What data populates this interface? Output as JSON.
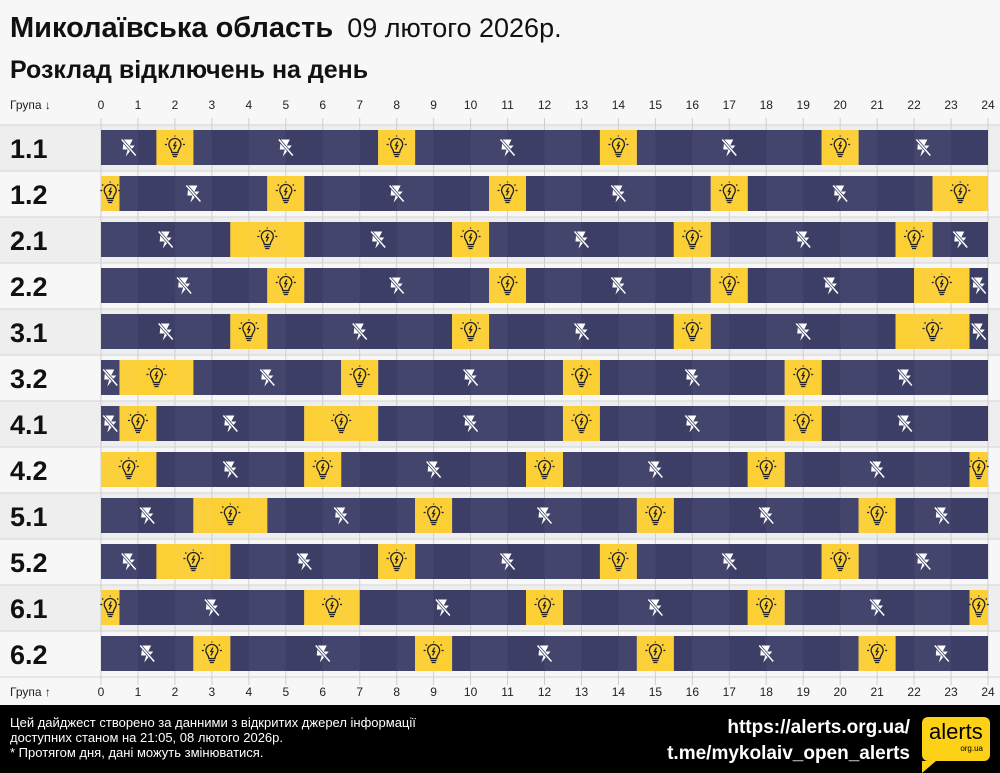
{
  "header": {
    "region": "Миколаївська область",
    "date": "09 лютого 2026р.",
    "subtitle": "Розклад відключень на день"
  },
  "chart_data": {
    "type": "table",
    "axis_top_label": "Група ↓",
    "axis_bottom_label": "Група ↑",
    "x_ticks": [
      "0",
      "1",
      "2",
      "3",
      "4",
      "5",
      "6",
      "7",
      "8",
      "9",
      "10",
      "11",
      "12",
      "13",
      "14",
      "15",
      "16",
      "17",
      "18",
      "19",
      "20",
      "21",
      "22",
      "23",
      "24"
    ],
    "xlim": [
      0,
      24
    ],
    "legend": {
      "off": "lightning-off-icon",
      "on": "lightbulb-icon"
    },
    "colors": {
      "off": "#3d3e66",
      "on": "#fccf34"
    },
    "groups": [
      {
        "name": "1.1",
        "segments": [
          [
            0,
            1.5,
            "off"
          ],
          [
            1.5,
            2.5,
            "on"
          ],
          [
            2.5,
            7.5,
            "off"
          ],
          [
            7.5,
            8.5,
            "on"
          ],
          [
            8.5,
            13.5,
            "off"
          ],
          [
            13.5,
            14.5,
            "on"
          ],
          [
            14.5,
            19.5,
            "off"
          ],
          [
            19.5,
            20.5,
            "on"
          ],
          [
            20.5,
            24,
            "off"
          ]
        ]
      },
      {
        "name": "1.2",
        "segments": [
          [
            0,
            0.5,
            "on"
          ],
          [
            0.5,
            4.5,
            "off"
          ],
          [
            4.5,
            5.5,
            "on"
          ],
          [
            5.5,
            10.5,
            "off"
          ],
          [
            10.5,
            11.5,
            "on"
          ],
          [
            11.5,
            16.5,
            "off"
          ],
          [
            16.5,
            17.5,
            "on"
          ],
          [
            17.5,
            22.5,
            "off"
          ],
          [
            22.5,
            24,
            "on"
          ]
        ]
      },
      {
        "name": "2.1",
        "segments": [
          [
            0,
            3.5,
            "off"
          ],
          [
            3.5,
            5.5,
            "on"
          ],
          [
            5.5,
            9.5,
            "off"
          ],
          [
            9.5,
            10.5,
            "on"
          ],
          [
            10.5,
            15.5,
            "off"
          ],
          [
            15.5,
            16.5,
            "on"
          ],
          [
            16.5,
            21.5,
            "off"
          ],
          [
            21.5,
            22.5,
            "on"
          ],
          [
            22.5,
            24,
            "off"
          ]
        ]
      },
      {
        "name": "2.2",
        "segments": [
          [
            0,
            4.5,
            "off"
          ],
          [
            4.5,
            5.5,
            "on"
          ],
          [
            5.5,
            10.5,
            "off"
          ],
          [
            10.5,
            11.5,
            "on"
          ],
          [
            11.5,
            16.5,
            "off"
          ],
          [
            16.5,
            17.5,
            "on"
          ],
          [
            17.5,
            22,
            "off"
          ],
          [
            22,
            23.5,
            "on"
          ],
          [
            23.5,
            24,
            "off"
          ]
        ]
      },
      {
        "name": "3.1",
        "segments": [
          [
            0,
            3.5,
            "off"
          ],
          [
            3.5,
            4.5,
            "on"
          ],
          [
            4.5,
            9.5,
            "off"
          ],
          [
            9.5,
            10.5,
            "on"
          ],
          [
            10.5,
            15.5,
            "off"
          ],
          [
            15.5,
            16.5,
            "on"
          ],
          [
            16.5,
            21.5,
            "off"
          ],
          [
            21.5,
            23.5,
            "on"
          ],
          [
            23.5,
            24,
            "off"
          ]
        ]
      },
      {
        "name": "3.2",
        "segments": [
          [
            0,
            0.5,
            "off"
          ],
          [
            0.5,
            2.5,
            "on"
          ],
          [
            2.5,
            6.5,
            "off"
          ],
          [
            6.5,
            7.5,
            "on"
          ],
          [
            7.5,
            12.5,
            "off"
          ],
          [
            12.5,
            13.5,
            "on"
          ],
          [
            13.5,
            18.5,
            "off"
          ],
          [
            18.5,
            19.5,
            "on"
          ],
          [
            19.5,
            24,
            "off"
          ]
        ]
      },
      {
        "name": "4.1",
        "segments": [
          [
            0,
            0.5,
            "off"
          ],
          [
            0.5,
            1.5,
            "on"
          ],
          [
            1.5,
            5.5,
            "off"
          ],
          [
            5.5,
            7.5,
            "on"
          ],
          [
            7.5,
            12.5,
            "off"
          ],
          [
            12.5,
            13.5,
            "on"
          ],
          [
            13.5,
            18.5,
            "off"
          ],
          [
            18.5,
            19.5,
            "on"
          ],
          [
            19.5,
            24,
            "off"
          ]
        ]
      },
      {
        "name": "4.2",
        "segments": [
          [
            0,
            1.5,
            "on"
          ],
          [
            1.5,
            5.5,
            "off"
          ],
          [
            5.5,
            6.5,
            "on"
          ],
          [
            6.5,
            11.5,
            "off"
          ],
          [
            11.5,
            12.5,
            "on"
          ],
          [
            12.5,
            17.5,
            "off"
          ],
          [
            17.5,
            18.5,
            "on"
          ],
          [
            18.5,
            23.5,
            "off"
          ],
          [
            23.5,
            24,
            "on"
          ]
        ]
      },
      {
        "name": "5.1",
        "segments": [
          [
            0,
            2.5,
            "off"
          ],
          [
            2.5,
            4.5,
            "on"
          ],
          [
            4.5,
            8.5,
            "off"
          ],
          [
            8.5,
            9.5,
            "on"
          ],
          [
            9.5,
            14.5,
            "off"
          ],
          [
            14.5,
            15.5,
            "on"
          ],
          [
            15.5,
            20.5,
            "off"
          ],
          [
            20.5,
            21.5,
            "on"
          ],
          [
            21.5,
            24,
            "off"
          ]
        ]
      },
      {
        "name": "5.2",
        "segments": [
          [
            0,
            1.5,
            "off"
          ],
          [
            1.5,
            3.5,
            "on"
          ],
          [
            3.5,
            7.5,
            "off"
          ],
          [
            7.5,
            8.5,
            "on"
          ],
          [
            8.5,
            13.5,
            "off"
          ],
          [
            13.5,
            14.5,
            "on"
          ],
          [
            14.5,
            19.5,
            "off"
          ],
          [
            19.5,
            20.5,
            "on"
          ],
          [
            20.5,
            24,
            "off"
          ]
        ]
      },
      {
        "name": "6.1",
        "segments": [
          [
            0,
            0.5,
            "on"
          ],
          [
            0.5,
            5.5,
            "off"
          ],
          [
            5.5,
            7,
            "on"
          ],
          [
            7,
            11.5,
            "off"
          ],
          [
            11.5,
            12.5,
            "on"
          ],
          [
            12.5,
            17.5,
            "off"
          ],
          [
            17.5,
            18.5,
            "on"
          ],
          [
            18.5,
            23.5,
            "off"
          ],
          [
            23.5,
            24,
            "on"
          ]
        ]
      },
      {
        "name": "6.2",
        "segments": [
          [
            0,
            2.5,
            "off"
          ],
          [
            2.5,
            3.5,
            "on"
          ],
          [
            3.5,
            8.5,
            "off"
          ],
          [
            8.5,
            9.5,
            "on"
          ],
          [
            9.5,
            14.5,
            "off"
          ],
          [
            14.5,
            15.5,
            "on"
          ],
          [
            15.5,
            20.5,
            "off"
          ],
          [
            20.5,
            21.5,
            "on"
          ],
          [
            21.5,
            24,
            "off"
          ]
        ]
      }
    ]
  },
  "footer": {
    "note_line1": "Цей дайджест створено за данними з відкритих джерел інформації",
    "note_line2": "доступних станом на 21:05, 08 лютого 2026р.",
    "note_line3": "* Протягом дня, дані можуть змінюватися.",
    "link1": "https://alerts.org.ua/",
    "link2": "t.me/mykolaiv_open_alerts",
    "logo_text": "alerts",
    "logo_sub": "org.ua"
  }
}
